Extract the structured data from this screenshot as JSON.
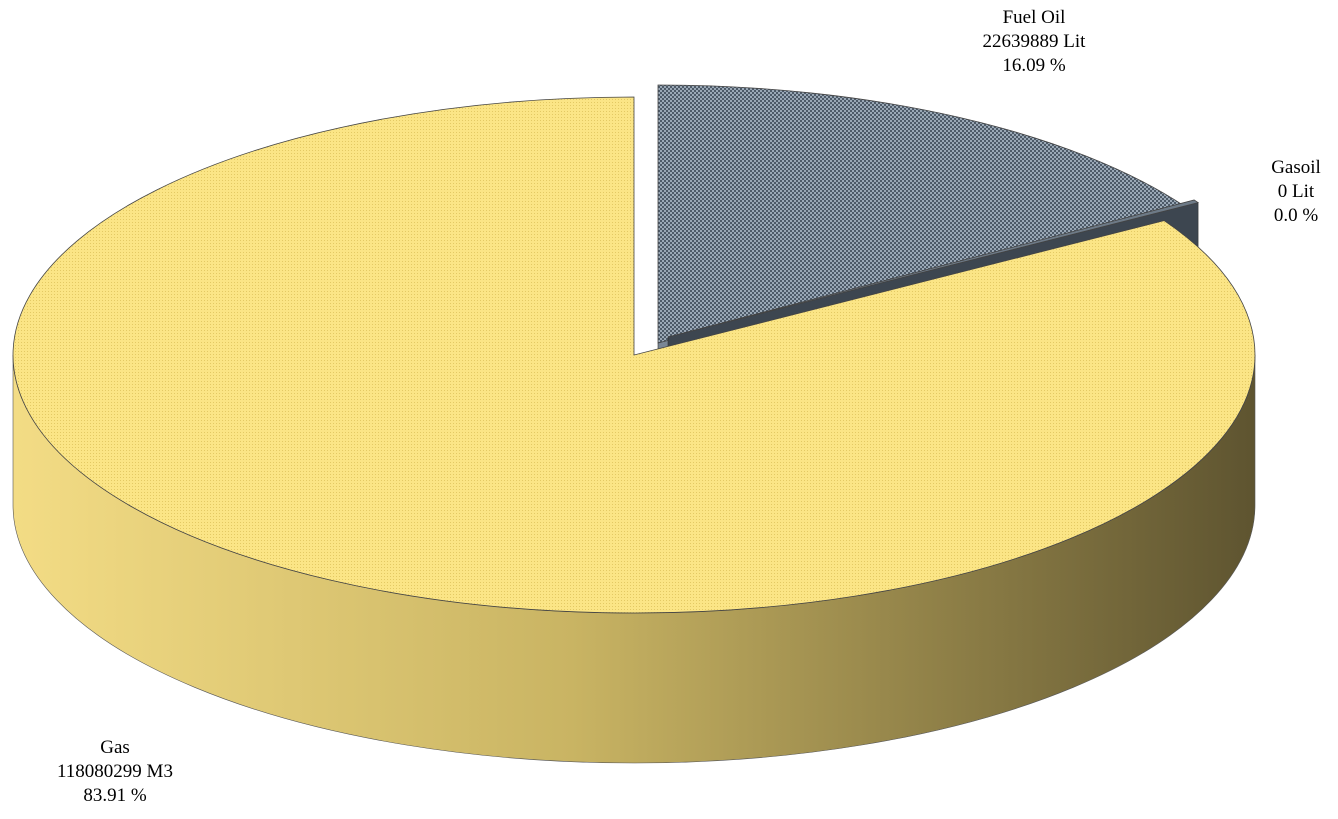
{
  "chart_data": {
    "type": "pie",
    "style": "3d-exploded",
    "slices": [
      {
        "name": "Gas",
        "value": 118080299,
        "unit": "M3",
        "percent": 83.91,
        "value_text": "118080299  M3",
        "percent_text": "83.91 %",
        "color": "#fae27e",
        "side_color": "#a89a4e"
      },
      {
        "name": "Fuel Oil",
        "value": 22639889,
        "unit": "Lit",
        "percent": 16.09,
        "value_text": "22639889  Lit",
        "percent_text": "16.09 %",
        "color": "#8696a8",
        "side_color": "#4f5b68"
      },
      {
        "name": "Gasoil",
        "value": 0,
        "unit": "Lit",
        "percent": 0.0,
        "value_text": "0  Lit",
        "percent_text": "0.0 %",
        "color": "#6d7a87",
        "side_color": "#3d4650"
      }
    ]
  }
}
